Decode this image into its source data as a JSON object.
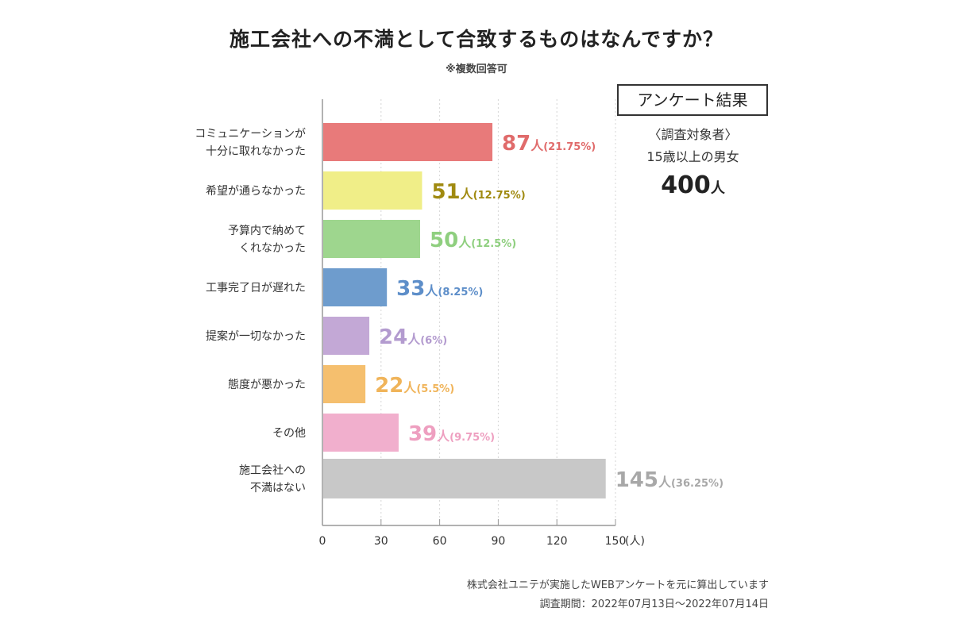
{
  "title": "施工会社への不満として合致するものはなんですか？",
  "subtitle": "※複数回答可",
  "survey": {
    "box_label": "アンケート結果",
    "target_label": "〈調査対象者〉",
    "target": "15歳以上の男女",
    "n_value": "400",
    "n_unit": "人"
  },
  "footer": {
    "source": "株式会社ユニテが実施したWEBアンケートを元に算出しています",
    "period": "調査期間：2022年07月13日〜2022年07月14日"
  },
  "chart_data": {
    "type": "bar",
    "orientation": "horizontal",
    "categories": [
      [
        "コミュニケーションが",
        "十分に取れなかった"
      ],
      [
        "希望が通らなかった"
      ],
      [
        "予算内で納めて",
        "くれなかった"
      ],
      [
        "工事完了日が遅れた"
      ],
      [
        "提案が一切なかった"
      ],
      [
        "態度が悪かった"
      ],
      [
        "その他"
      ],
      [
        "施工会社への",
        "不満はない"
      ]
    ],
    "values": [
      87,
      51,
      50,
      33,
      24,
      22,
      39,
      145
    ],
    "value_labels": [
      "87",
      "51",
      "50",
      "33",
      "24",
      "22",
      "39",
      "145"
    ],
    "unit": "人",
    "percent_labels": [
      "(21.75%)",
      "(12.75%)",
      "(12.5%)",
      "(8.25%)",
      "(6%)",
      "(5.5%)",
      "(9.75%)",
      "(36.25%)"
    ],
    "colors": [
      "#e87a7a",
      "#f0ee88",
      "#9ed68e",
      "#6e9ccd",
      "#c3a8d6",
      "#f5bf6e",
      "#f1afcd",
      "#c8c8c8"
    ],
    "label_colors": [
      "#e06b6b",
      "#a08a10",
      "#8fcf7f",
      "#5d8ec9",
      "#b39bcf",
      "#f0b45a",
      "#ee9fc0",
      "#a8a8a8"
    ],
    "xlim": [
      0,
      150
    ],
    "xticks": [
      0,
      30,
      60,
      90,
      120,
      150
    ],
    "xtick_labels": [
      "0",
      "30",
      "60",
      "90",
      "120",
      "150"
    ],
    "xunit": "(人)"
  }
}
